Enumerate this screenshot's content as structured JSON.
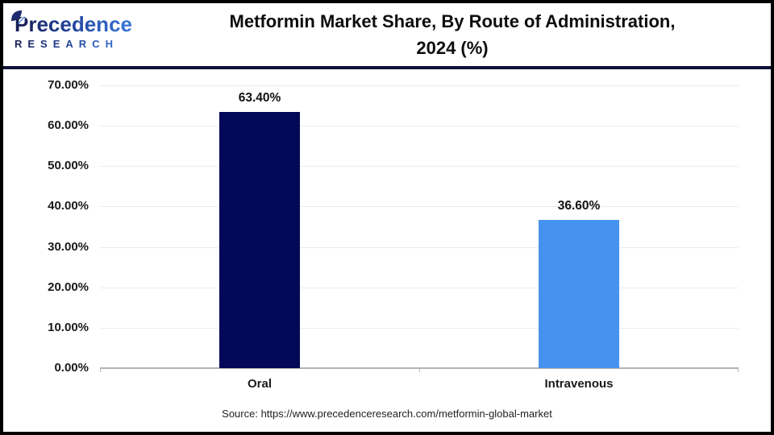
{
  "header": {
    "logo_line1": "Precedence",
    "logo_line2": "RESEARCH",
    "title_line1": "Metformin Market Share, By Route of Administration,",
    "title_line2": "2024 (%)"
  },
  "chart_data": {
    "type": "bar",
    "title": "Metformin Market Share, By Route of Administration, 2024 (%)",
    "categories": [
      "Oral",
      "Intravenous"
    ],
    "values": [
      63.4,
      36.6
    ],
    "value_labels": [
      "63.40%",
      "36.60%"
    ],
    "bar_colors": [
      "#030857",
      "#4593ef"
    ],
    "xlabel": "",
    "ylabel": "",
    "ylim": [
      0,
      70
    ],
    "ytick_interval": 10,
    "ytick_labels": [
      "70.00%",
      "60.00%",
      "50.00%",
      "40.00%",
      "30.00%",
      "20.00%",
      "10.00%",
      "0.00%"
    ],
    "grid": true,
    "legend_position": "none"
  },
  "footer": {
    "source": "Source: https://www.precedenceresearch.com/metformin-global-market"
  },
  "colors": {
    "frame_border": "#000000",
    "header_rule": "#10103a",
    "gridline": "#ececec",
    "axis_line": "#b3b3b3",
    "bar_oral": "#030857",
    "bar_intravenous": "#4593ef",
    "logo_navy": "#181d52",
    "logo_blue": "#3c7ee2"
  }
}
